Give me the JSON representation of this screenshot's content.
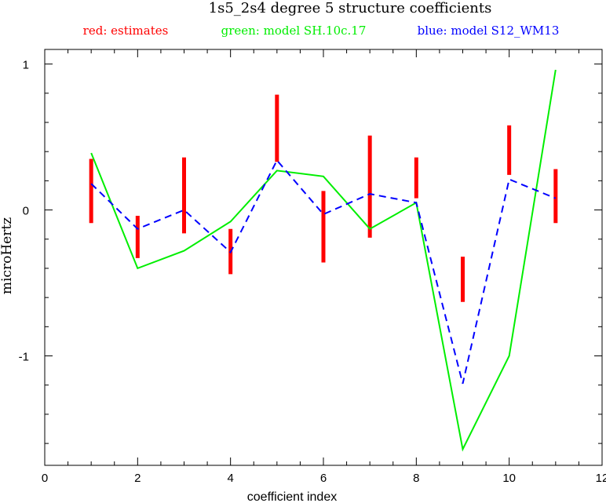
{
  "chart_data": {
    "type": "line",
    "title": "1s5_2s4 degree 5 structure coefficients",
    "xlabel": "coefficient index",
    "ylabel": "microHertz",
    "xlim": [
      0,
      12
    ],
    "ylim": [
      -1.75,
      1.1
    ],
    "x_ticks": [
      0,
      2,
      4,
      6,
      8,
      10,
      12
    ],
    "x_tick_labels": [
      "0",
      "2",
      "4",
      "6",
      "8",
      "10",
      "12"
    ],
    "y_ticks": [
      -1,
      0,
      1
    ],
    "y_tick_labels": [
      "-1",
      "0",
      "1"
    ],
    "legend": [
      {
        "label": "red: estimates",
        "color": "#ff0000"
      },
      {
        "label": "green: model SH.10c.17",
        "color": "#00ee00"
      },
      {
        "label": "blue: model S12_WM13",
        "color": "#0000ff"
      }
    ],
    "estimates": {
      "color": "#ff0000",
      "ranges": [
        {
          "x": 1,
          "low": -0.09,
          "high": 0.35
        },
        {
          "x": 2,
          "low": -0.33,
          "high": -0.04
        },
        {
          "x": 3,
          "low": -0.16,
          "high": 0.36
        },
        {
          "x": 4,
          "low": -0.44,
          "high": -0.13
        },
        {
          "x": 5,
          "low": 0.33,
          "high": 0.79
        },
        {
          "x": 6,
          "low": -0.36,
          "high": 0.13
        },
        {
          "x": 7,
          "low": -0.19,
          "high": 0.51
        },
        {
          "x": 8,
          "low": 0.08,
          "high": 0.36
        },
        {
          "x": 9,
          "low": -0.63,
          "high": -0.32
        },
        {
          "x": 10,
          "low": 0.24,
          "high": 0.58
        },
        {
          "x": 11,
          "low": -0.09,
          "high": 0.28
        }
      ]
    },
    "series": [
      {
        "color": "#00ee00",
        "style": "solid",
        "x": [
          1,
          2,
          3,
          4,
          5,
          6,
          7,
          8,
          9,
          10,
          11
        ],
        "values": [
          0.39,
          -0.4,
          -0.28,
          -0.08,
          0.27,
          0.23,
          -0.13,
          0.05,
          -1.64,
          -1.0,
          0.96
        ]
      },
      {
        "color": "#0000ff",
        "style": "dashed",
        "x": [
          1,
          2,
          3,
          4,
          5,
          6,
          7,
          8,
          9,
          10,
          11
        ],
        "values": [
          0.18,
          -0.13,
          0.0,
          -0.29,
          0.34,
          -0.03,
          0.11,
          0.05,
          -1.19,
          0.21,
          0.08
        ]
      }
    ]
  }
}
